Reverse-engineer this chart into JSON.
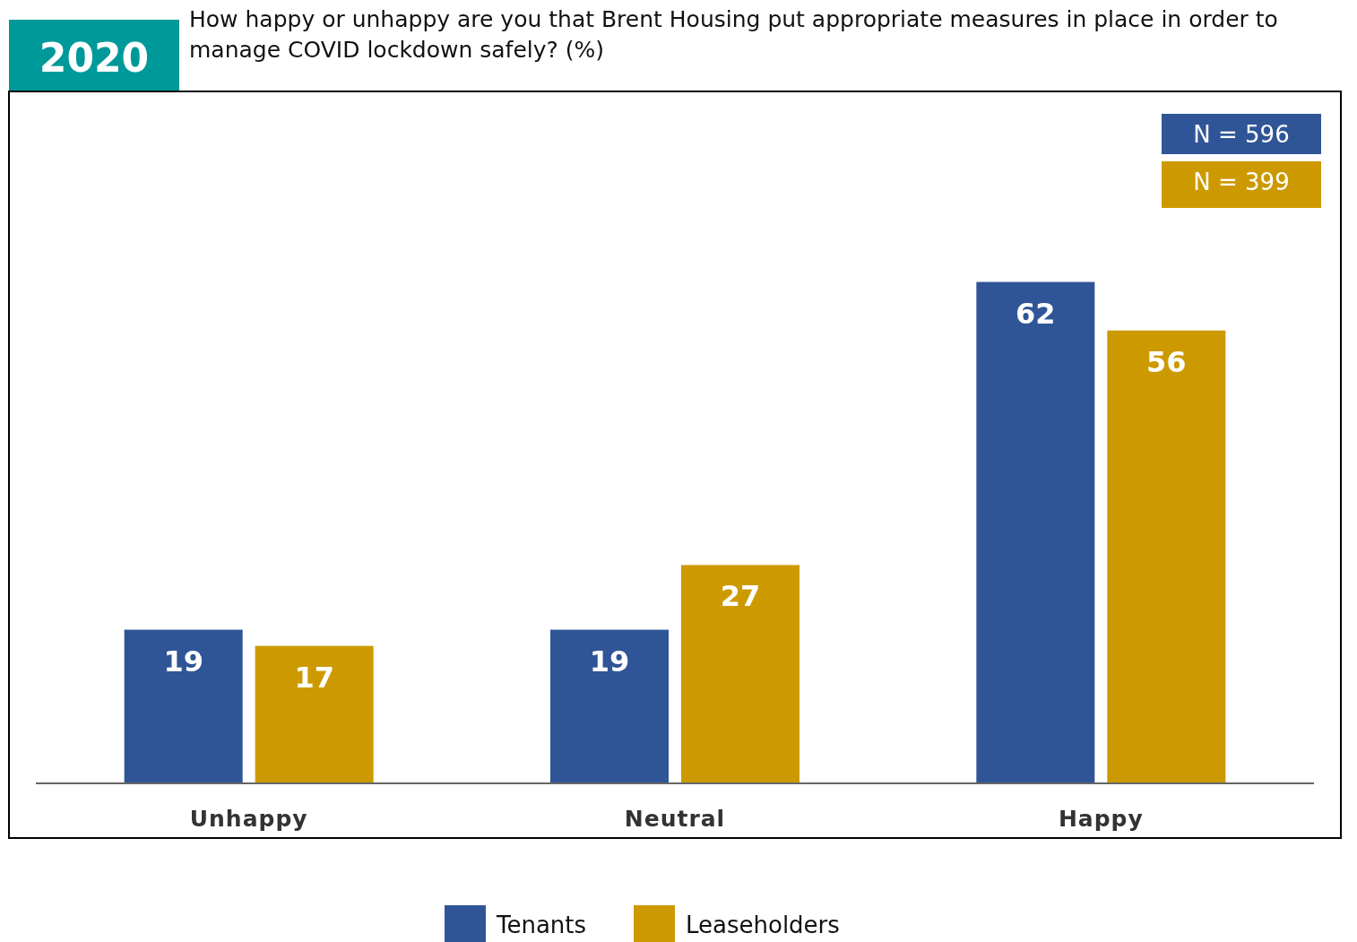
{
  "chart_data": {
    "type": "bar",
    "title": "How happy or unhappy are you that Brent Housing put appropriate measures in place in order to manage COVID lockdown safely? (%)",
    "categories": [
      "Unhappy",
      "Neutral",
      "Happy"
    ],
    "series": [
      {
        "name": "Tenants",
        "color": "#2f5597",
        "values": [
          19,
          19,
          62
        ]
      },
      {
        "name": "Leaseholders",
        "color": "#cc9a00",
        "values": [
          17,
          27,
          56
        ]
      }
    ],
    "annotations": [
      "2020",
      "N = 596",
      "N = 399"
    ],
    "data_labels": true,
    "legend": "bottom"
  }
}
